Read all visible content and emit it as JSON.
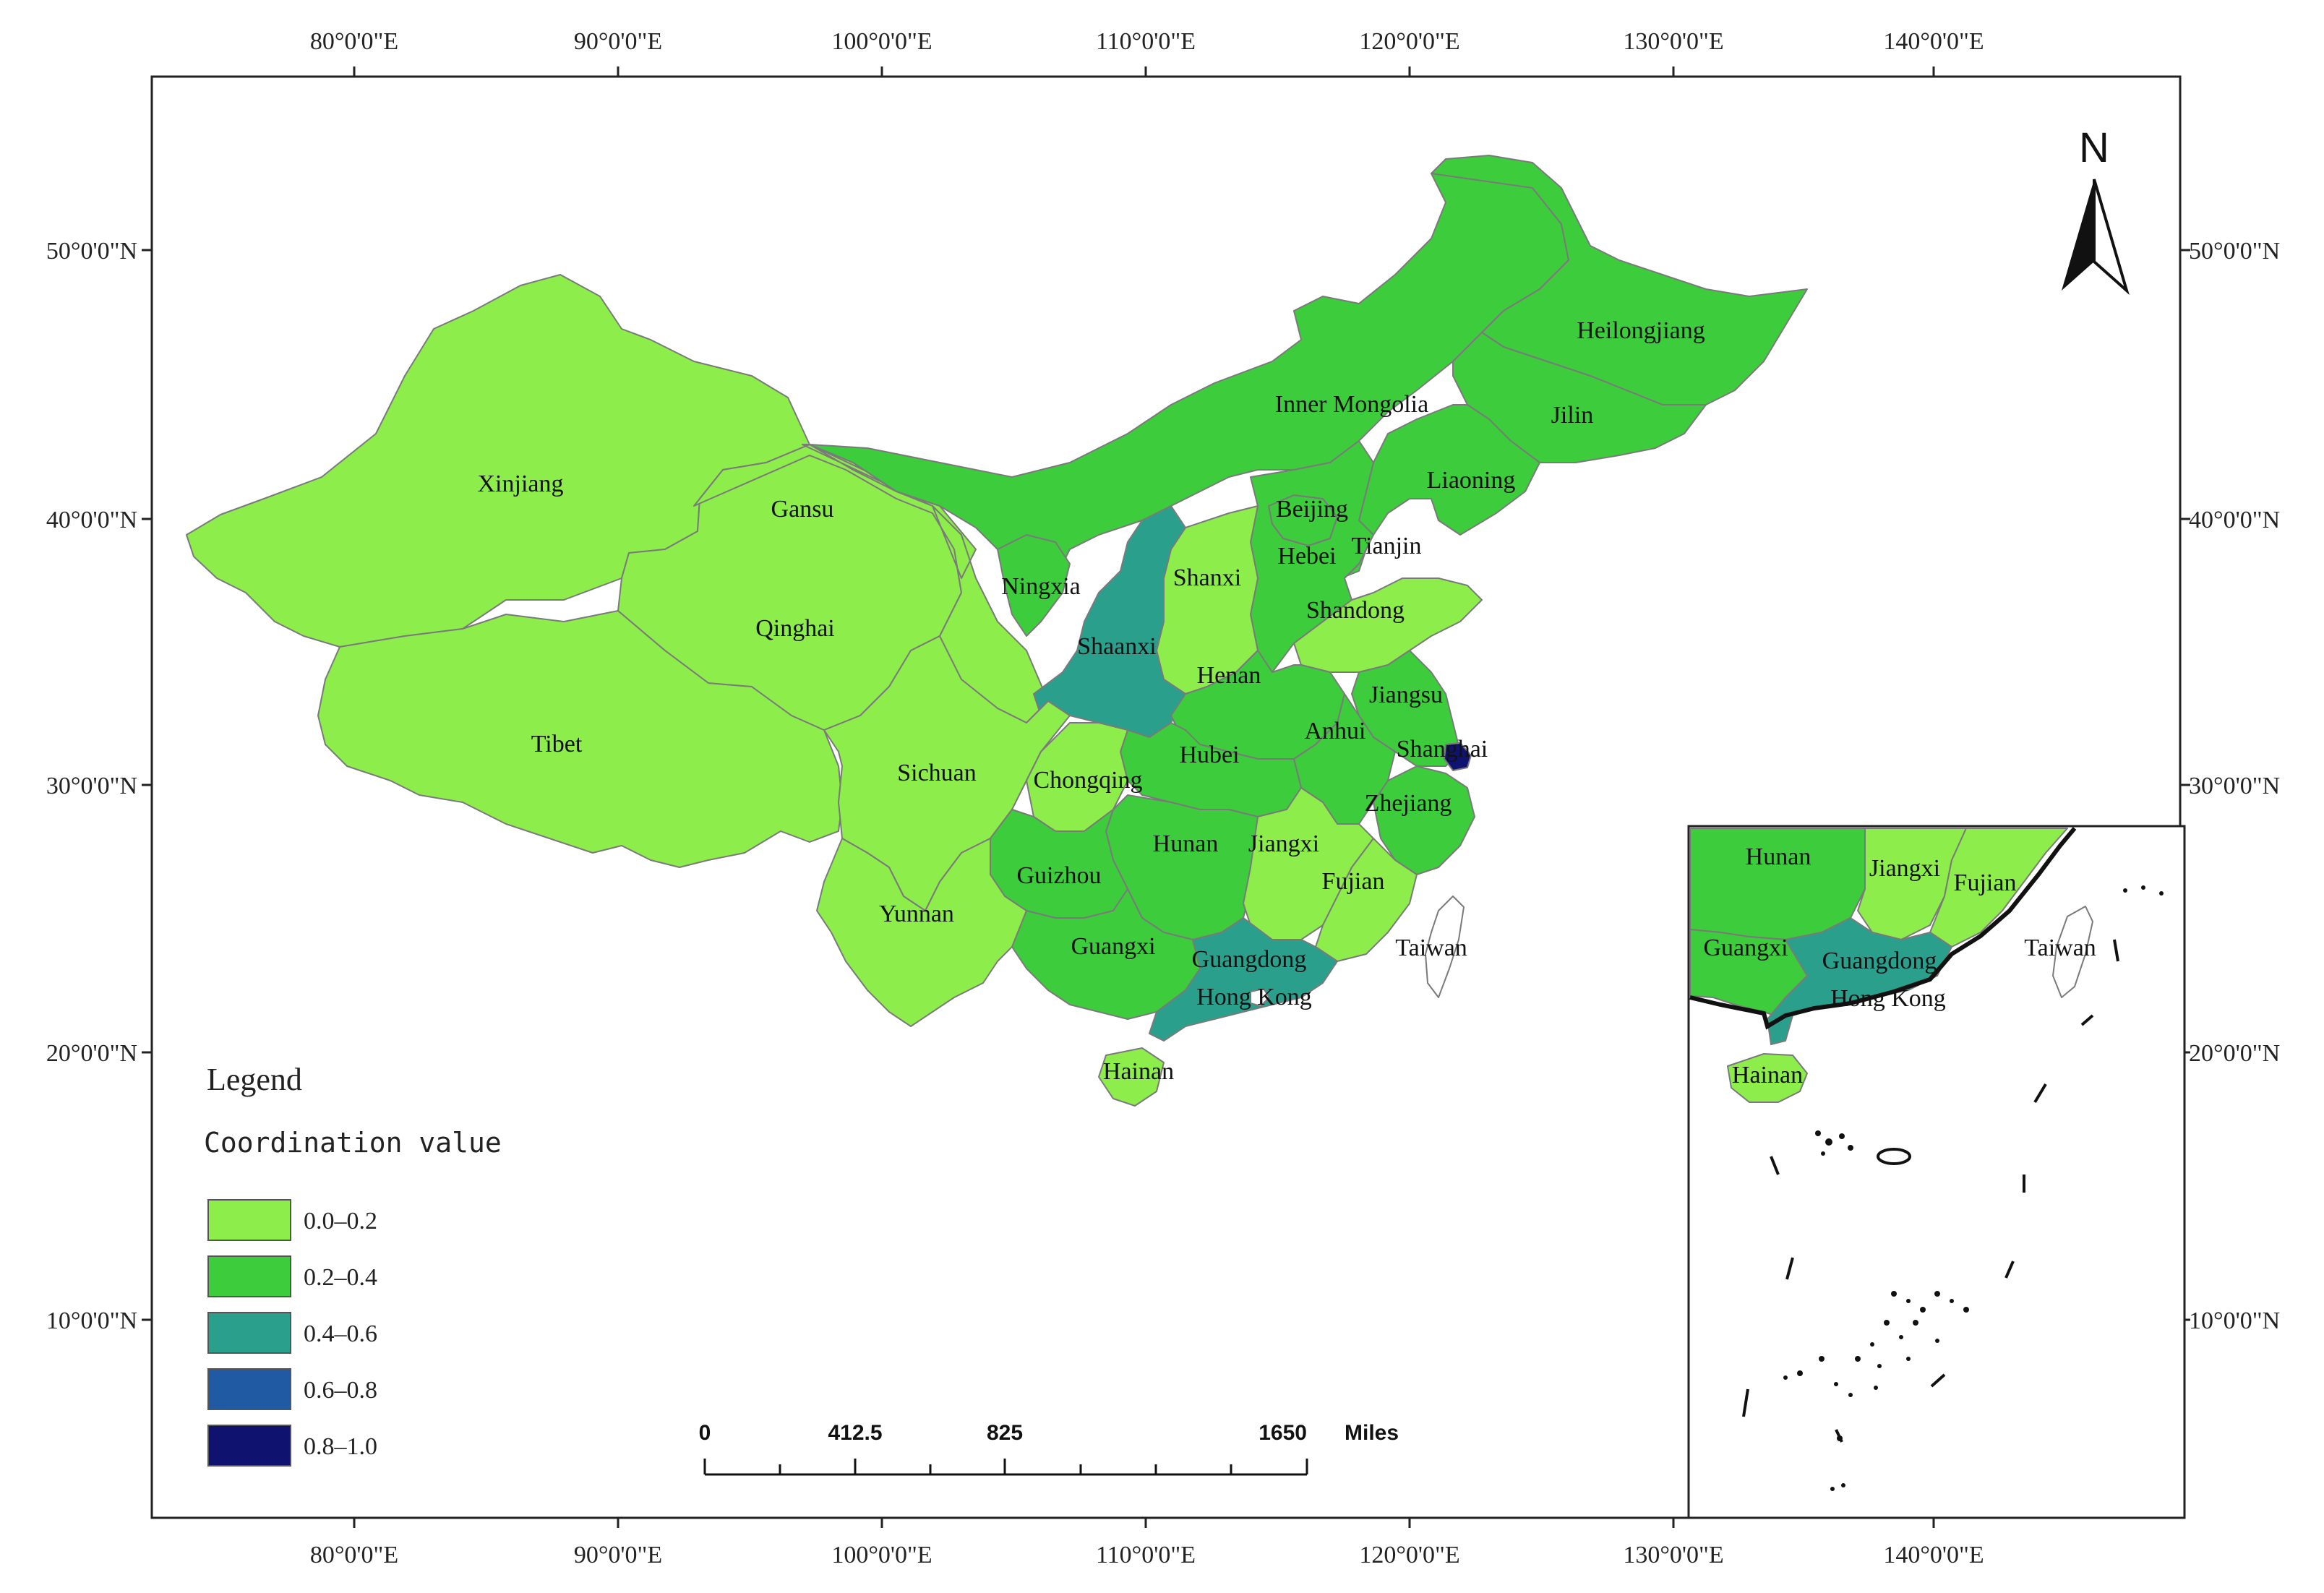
{
  "colors": {
    "class_0": "#8ded4b",
    "class_1": "#3ccc3c",
    "class_2": "#2aa08c",
    "class_3": "#1f5aa2",
    "class_4": "#101270",
    "frame": "#222222",
    "boundary": "#7a7a7a"
  },
  "graticule": {
    "longitude_labels": [
      "80°0'0\"E",
      "90°0'0\"E",
      "100°0'0\"E",
      "110°0'0\"E",
      "120°0'0\"E",
      "130°0'0\"E",
      "140°0'0\"E"
    ],
    "latitude_labels": [
      "50°0'0\"N",
      "40°0'0\"N",
      "30°0'0\"N",
      "20°0'0\"N",
      "10°0'0\"N"
    ]
  },
  "north_arrow": {
    "label": "N",
    "icon": "north-arrow-icon"
  },
  "legend": {
    "title": "Legend",
    "subtitle": "Coordination value",
    "items": [
      {
        "label": "0.0–0.2",
        "class": 0
      },
      {
        "label": "0.2–0.4",
        "class": 1
      },
      {
        "label": "0.4–0.6",
        "class": 2
      },
      {
        "label": "0.6–0.8",
        "class": 3
      },
      {
        "label": "0.8–1.0",
        "class": 4
      }
    ]
  },
  "scale_bar": {
    "labels": [
      "0",
      "412.5",
      "825",
      "1650"
    ],
    "unit": "Miles"
  },
  "regions": [
    {
      "name": "Xinjiang",
      "class": 0
    },
    {
      "name": "Tibet",
      "class": 0
    },
    {
      "name": "Qinghai",
      "class": 0
    },
    {
      "name": "Gansu",
      "class": 0
    },
    {
      "name": "Inner Mongolia",
      "class": 1
    },
    {
      "name": "Heilongjiang",
      "class": 1
    },
    {
      "name": "Jilin",
      "class": 1
    },
    {
      "name": "Liaoning",
      "class": 1
    },
    {
      "name": "Beijing",
      "class": 1
    },
    {
      "name": "Tianjin",
      "class": 1
    },
    {
      "name": "Hebei",
      "class": 1
    },
    {
      "name": "Shanxi",
      "class": 0
    },
    {
      "name": "Shandong",
      "class": 0
    },
    {
      "name": "Ningxia",
      "class": 1
    },
    {
      "name": "Shaanxi",
      "class": 2
    },
    {
      "name": "Henan",
      "class": 1
    },
    {
      "name": "Jiangsu",
      "class": 1
    },
    {
      "name": "Anhui",
      "class": 1
    },
    {
      "name": "Shanghai",
      "class": 4
    },
    {
      "name": "Hubei",
      "class": 1
    },
    {
      "name": "Sichuan",
      "class": 0
    },
    {
      "name": "Chongqing",
      "class": 0
    },
    {
      "name": "Zhejiang",
      "class": 1
    },
    {
      "name": "Hunan",
      "class": 1
    },
    {
      "name": "Jiangxi",
      "class": 0
    },
    {
      "name": "Guizhou",
      "class": 1
    },
    {
      "name": "Fujian",
      "class": 0
    },
    {
      "name": "Yunnan",
      "class": 0
    },
    {
      "name": "Guangxi",
      "class": 1
    },
    {
      "name": "Guangdong",
      "class": 2
    },
    {
      "name": "Hong Kong",
      "class": null
    },
    {
      "name": "Taiwan",
      "class": null
    },
    {
      "name": "Hainan",
      "class": 0
    }
  ],
  "inset": {
    "labels": [
      "Hunan",
      "Jiangxi",
      "Fujian",
      "Guangxi",
      "Guangdong",
      "Hong Kong",
      "Taiwan",
      "Hainan"
    ]
  }
}
